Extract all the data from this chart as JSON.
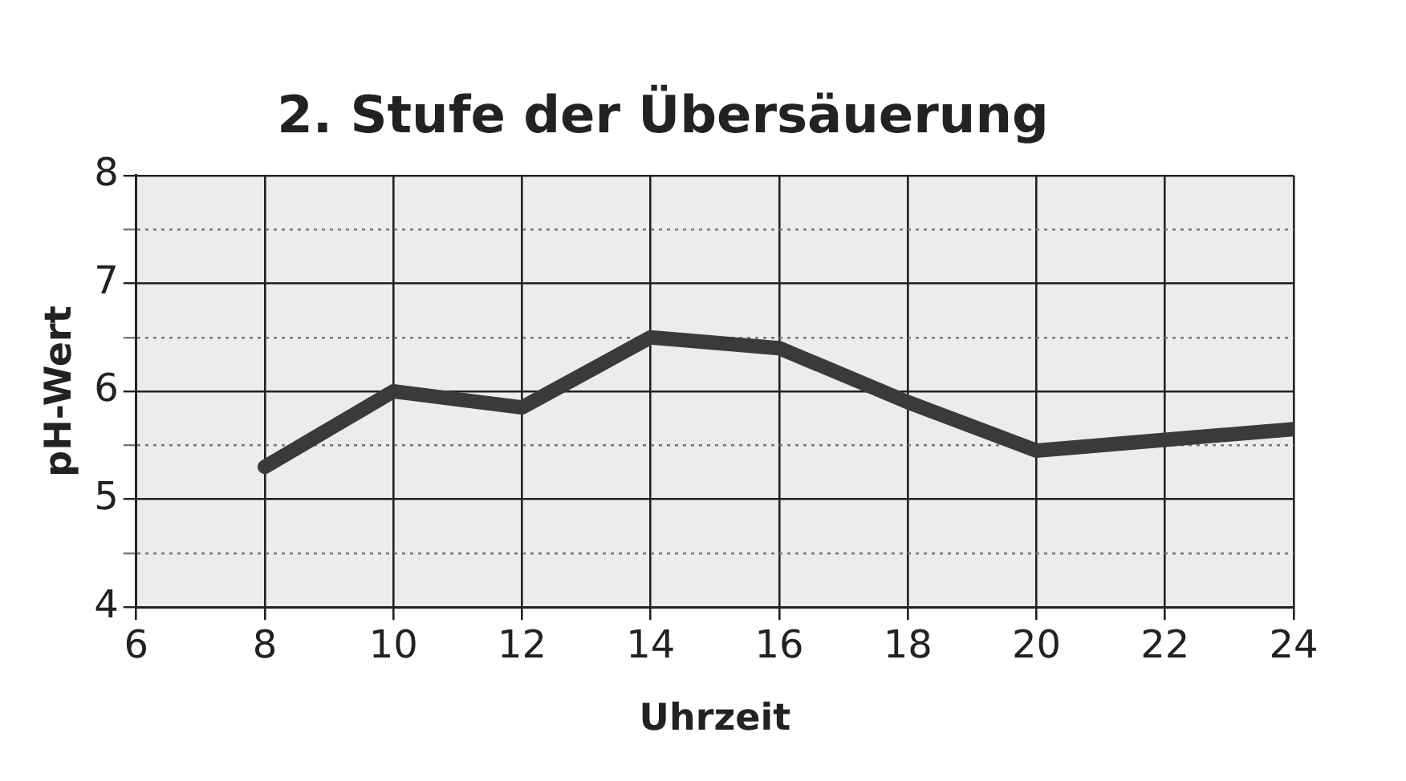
{
  "chart_data": {
    "type": "line",
    "title": "2. Stufe der Übersäuerung",
    "xlabel": "Uhrzeit",
    "ylabel": "pH-Wert",
    "x": [
      8,
      10,
      12,
      14,
      16,
      18,
      20,
      22,
      24
    ],
    "series": [
      {
        "color": "#3a3a3a",
        "values": [
          5.3,
          6.0,
          5.85,
          6.5,
          6.4,
          5.9,
          5.45,
          5.55,
          5.65
        ]
      }
    ],
    "xlim": [
      6,
      24
    ],
    "xticks": [
      6,
      8,
      10,
      12,
      14,
      16,
      18,
      20,
      22,
      24
    ],
    "ylim": [
      4,
      8
    ],
    "yticks": [
      4,
      {
        "value": 4.5,
        "label": null
      },
      5,
      {
        "value": 5.5,
        "label": null
      },
      6,
      {
        "value": 6.5,
        "label": null
      },
      7,
      {
        "value": 7.5,
        "label": null
      },
      8
    ],
    "grid": true,
    "legend": false,
    "marker": "none",
    "line_style": "solid"
  }
}
